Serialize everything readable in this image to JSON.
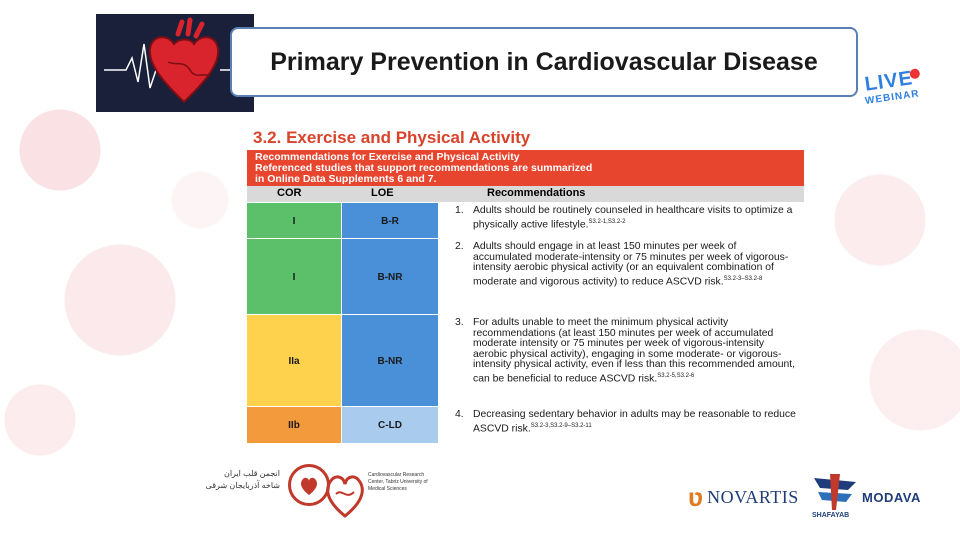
{
  "header": {
    "title": "Primary Prevention in Cardiovascular Disease",
    "live_badge": "LIVE",
    "live_sub": "WEBINAR"
  },
  "slide": {
    "section_title": "3.2. Exercise and Physical Activity",
    "banner_line1": "Recommendations for Exercise and Physical Activity",
    "banner_line2": "Referenced studies that support recommendations are summarized",
    "banner_line3": "in Online Data Supplements 6 and 7.",
    "columns": [
      "COR",
      "LOE",
      "Recommendations"
    ],
    "rows": [
      {
        "cor": "I",
        "loe": "B-R",
        "num": "1.",
        "text": "Adults should be routinely counseled in healthcare visits to optimize a physically active lifestyle.",
        "refs": "S3.2-1,S3.2-2"
      },
      {
        "cor": "I",
        "loe": "B-NR",
        "num": "2.",
        "text": "Adults should engage in at least 150 minutes per week of accumulated moderate-intensity or 75 minutes per week of vigorous-intensity aerobic physical activity (or an equivalent combination of moderate and vigorous activity) to reduce ASCVD risk.",
        "refs": "S3.2-3–S3.2-8"
      },
      {
        "cor": "IIa",
        "loe": "B-NR",
        "num": "3.",
        "text": "For adults unable to meet the minimum physical activity recommendations (at least 150 minutes per week of accumulated moderate intensity or 75 minutes per week of vigorous-intensity aerobic physical activity), engaging in some moderate- or vigorous-intensity physical activity, even if less than this recommended amount, can be beneficial to reduce ASCVD risk.",
        "refs": "S3.2-5,S3.2-6"
      },
      {
        "cor": "IIb",
        "loe": "C-LD",
        "num": "4.",
        "text": "Decreasing sedentary behavior in adults may be reasonable to reduce ASCVD risk.",
        "refs": "S3.2-3,S3.2-9–S3.2-11"
      }
    ]
  },
  "footer": {
    "arabic_line1": "انجمن قلب ایران",
    "arabic_line2": "شاخه آذربایجان شرقی",
    "heart_org": "Cardiovascular Research Center, Tabriz University of Medical Sciences",
    "novartis": "NOVARTIS",
    "shafayab": "SHAFAYAB",
    "modava": "MODAVA"
  },
  "colors": {
    "cor_I": "#5cbf6a",
    "cor_IIa": "#ffd24d",
    "cor_IIb": "#f39a3c",
    "loe_B": "#4a90d9",
    "loe_C": "#a9cbee",
    "banner": "#e8452f",
    "section": "#d8432a"
  }
}
